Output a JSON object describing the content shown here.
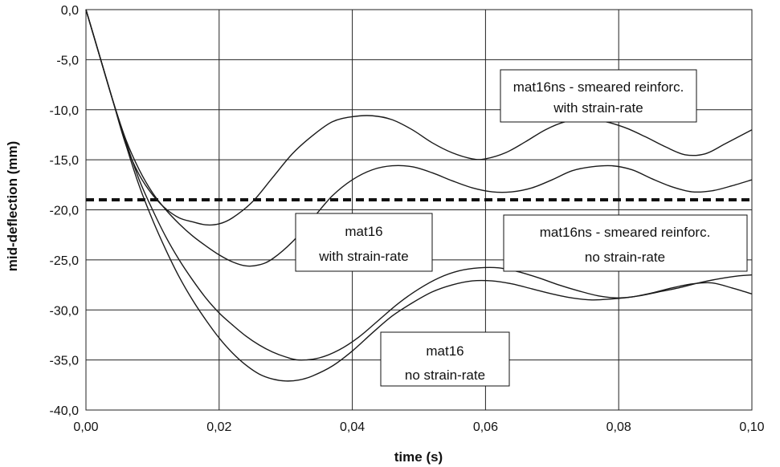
{
  "chart_data": {
    "type": "line",
    "xlabel": "time (s)",
    "ylabel": "mid-deflection (mm)",
    "xlim": [
      0,
      0.1
    ],
    "ylim": [
      -40,
      0
    ],
    "x_ticks": [
      0,
      0.02,
      0.04,
      0.06,
      0.08,
      0.1
    ],
    "x_tick_labels": [
      "0,00",
      "0,02",
      "0,04",
      "0,06",
      "0,08",
      "0,10"
    ],
    "y_ticks": [
      0,
      -5,
      -10,
      -15,
      -20,
      -25,
      -30,
      -35,
      -40
    ],
    "y_tick_labels": [
      "0,0",
      "-5,0",
      "-10,0",
      "-15,0",
      "-20,0",
      "-25,0",
      "-30,0",
      "-35,0",
      "-40,0"
    ],
    "grid": true,
    "colors": {
      "line": "#1a1a1a",
      "grid": "#222222",
      "background": "#ffffff"
    },
    "threshold": {
      "y": -19.0,
      "style": "dashed"
    },
    "series": [
      {
        "x": [
          0,
          0.002,
          0.004,
          0.006,
          0.008,
          0.01,
          0.012,
          0.014,
          0.016,
          0.018,
          0.02,
          0.022,
          0.025,
          0.028,
          0.031,
          0.034,
          0.037,
          0.04,
          0.043,
          0.046,
          0.049,
          0.052,
          0.055,
          0.058,
          0.06,
          0.063,
          0.066,
          0.069,
          0.072,
          0.075,
          0.078,
          0.081,
          0.084,
          0.087,
          0.09,
          0.093,
          0.096,
          0.1
        ],
        "y": [
          0,
          -4.5,
          -9,
          -13.5,
          -16.5,
          -18.5,
          -19.9,
          -20.8,
          -21.2,
          -21.5,
          -21.4,
          -20.8,
          -19.2,
          -16.8,
          -14.4,
          -12.6,
          -11.2,
          -10.7,
          -10.6,
          -11.0,
          -12.0,
          -13.3,
          -14.3,
          -14.9,
          -14.9,
          -14.3,
          -13.2,
          -12.0,
          -11.2,
          -11.0,
          -11.2,
          -11.8,
          -12.7,
          -13.7,
          -14.5,
          -14.4,
          -13.4,
          -12.0
        ]
      },
      {
        "x": [
          0,
          0.002,
          0.004,
          0.006,
          0.008,
          0.01,
          0.012,
          0.014,
          0.016,
          0.018,
          0.02,
          0.022,
          0.024,
          0.026,
          0.028,
          0.031,
          0.034,
          0.037,
          0.04,
          0.043,
          0.046,
          0.049,
          0.052,
          0.055,
          0.058,
          0.061,
          0.064,
          0.067,
          0.07,
          0.073,
          0.076,
          0.079,
          0.082,
          0.085,
          0.088,
          0.091,
          0.094,
          0.097,
          0.1
        ],
        "y": [
          0,
          -4.5,
          -9,
          -13.0,
          -16.0,
          -18.3,
          -20.0,
          -21.4,
          -22.6,
          -23.6,
          -24.5,
          -25.2,
          -25.6,
          -25.5,
          -24.9,
          -23.2,
          -20.9,
          -18.6,
          -17.0,
          -16.0,
          -15.6,
          -15.7,
          -16.3,
          -17.1,
          -17.8,
          -18.2,
          -18.2,
          -17.8,
          -17.0,
          -16.1,
          -15.7,
          -15.6,
          -16.0,
          -16.9,
          -17.7,
          -18.2,
          -18.1,
          -17.6,
          -17.0
        ]
      },
      {
        "x": [
          0,
          0.002,
          0.004,
          0.006,
          0.008,
          0.01,
          0.012,
          0.014,
          0.016,
          0.018,
          0.02,
          0.022,
          0.024,
          0.026,
          0.028,
          0.03,
          0.032,
          0.035,
          0.038,
          0.041,
          0.044,
          0.047,
          0.05,
          0.053,
          0.056,
          0.059,
          0.062,
          0.065,
          0.068,
          0.071,
          0.074,
          0.077,
          0.08,
          0.083,
          0.086,
          0.089,
          0.092,
          0.095,
          0.098,
          0.1
        ],
        "y": [
          0,
          -4.5,
          -9,
          -13.2,
          -17.0,
          -20.0,
          -22.7,
          -25.0,
          -27.0,
          -28.8,
          -30.3,
          -31.5,
          -32.6,
          -33.5,
          -34.2,
          -34.7,
          -35.0,
          -34.8,
          -34.0,
          -32.7,
          -31.0,
          -29.3,
          -27.9,
          -26.8,
          -26.1,
          -25.8,
          -25.8,
          -26.2,
          -26.8,
          -27.5,
          -28.1,
          -28.6,
          -28.8,
          -28.6,
          -28.2,
          -27.8,
          -27.3,
          -26.9,
          -26.6,
          -26.5
        ]
      },
      {
        "x": [
          0,
          0.002,
          0.004,
          0.006,
          0.008,
          0.01,
          0.012,
          0.014,
          0.016,
          0.018,
          0.02,
          0.022,
          0.024,
          0.026,
          0.028,
          0.03,
          0.032,
          0.034,
          0.037,
          0.04,
          0.043,
          0.046,
          0.049,
          0.052,
          0.055,
          0.058,
          0.061,
          0.064,
          0.067,
          0.07,
          0.073,
          0.076,
          0.079,
          0.082,
          0.085,
          0.088,
          0.091,
          0.094,
          0.097,
          0.1
        ],
        "y": [
          0,
          -4.5,
          -9,
          -13.5,
          -17.6,
          -21.0,
          -24.0,
          -26.7,
          -29.0,
          -31.0,
          -32.8,
          -34.3,
          -35.5,
          -36.4,
          -36.9,
          -37.1,
          -37.0,
          -36.6,
          -35.6,
          -34.1,
          -32.3,
          -30.6,
          -29.3,
          -28.2,
          -27.5,
          -27.1,
          -27.1,
          -27.4,
          -27.9,
          -28.4,
          -28.8,
          -29.0,
          -28.9,
          -28.7,
          -28.3,
          -27.8,
          -27.4,
          -27.3,
          -27.8,
          -28.4
        ]
      }
    ],
    "annotations": [
      {
        "lines": [
          "mat16ns - smeared reinforc.",
          "with strain-rate"
        ]
      },
      {
        "lines": [
          "mat16",
          "with strain-rate"
        ]
      },
      {
        "lines": [
          "mat16ns - smeared reinforc.",
          "no strain-rate"
        ]
      },
      {
        "lines": [
          "mat16",
          "no strain-rate"
        ]
      }
    ]
  }
}
